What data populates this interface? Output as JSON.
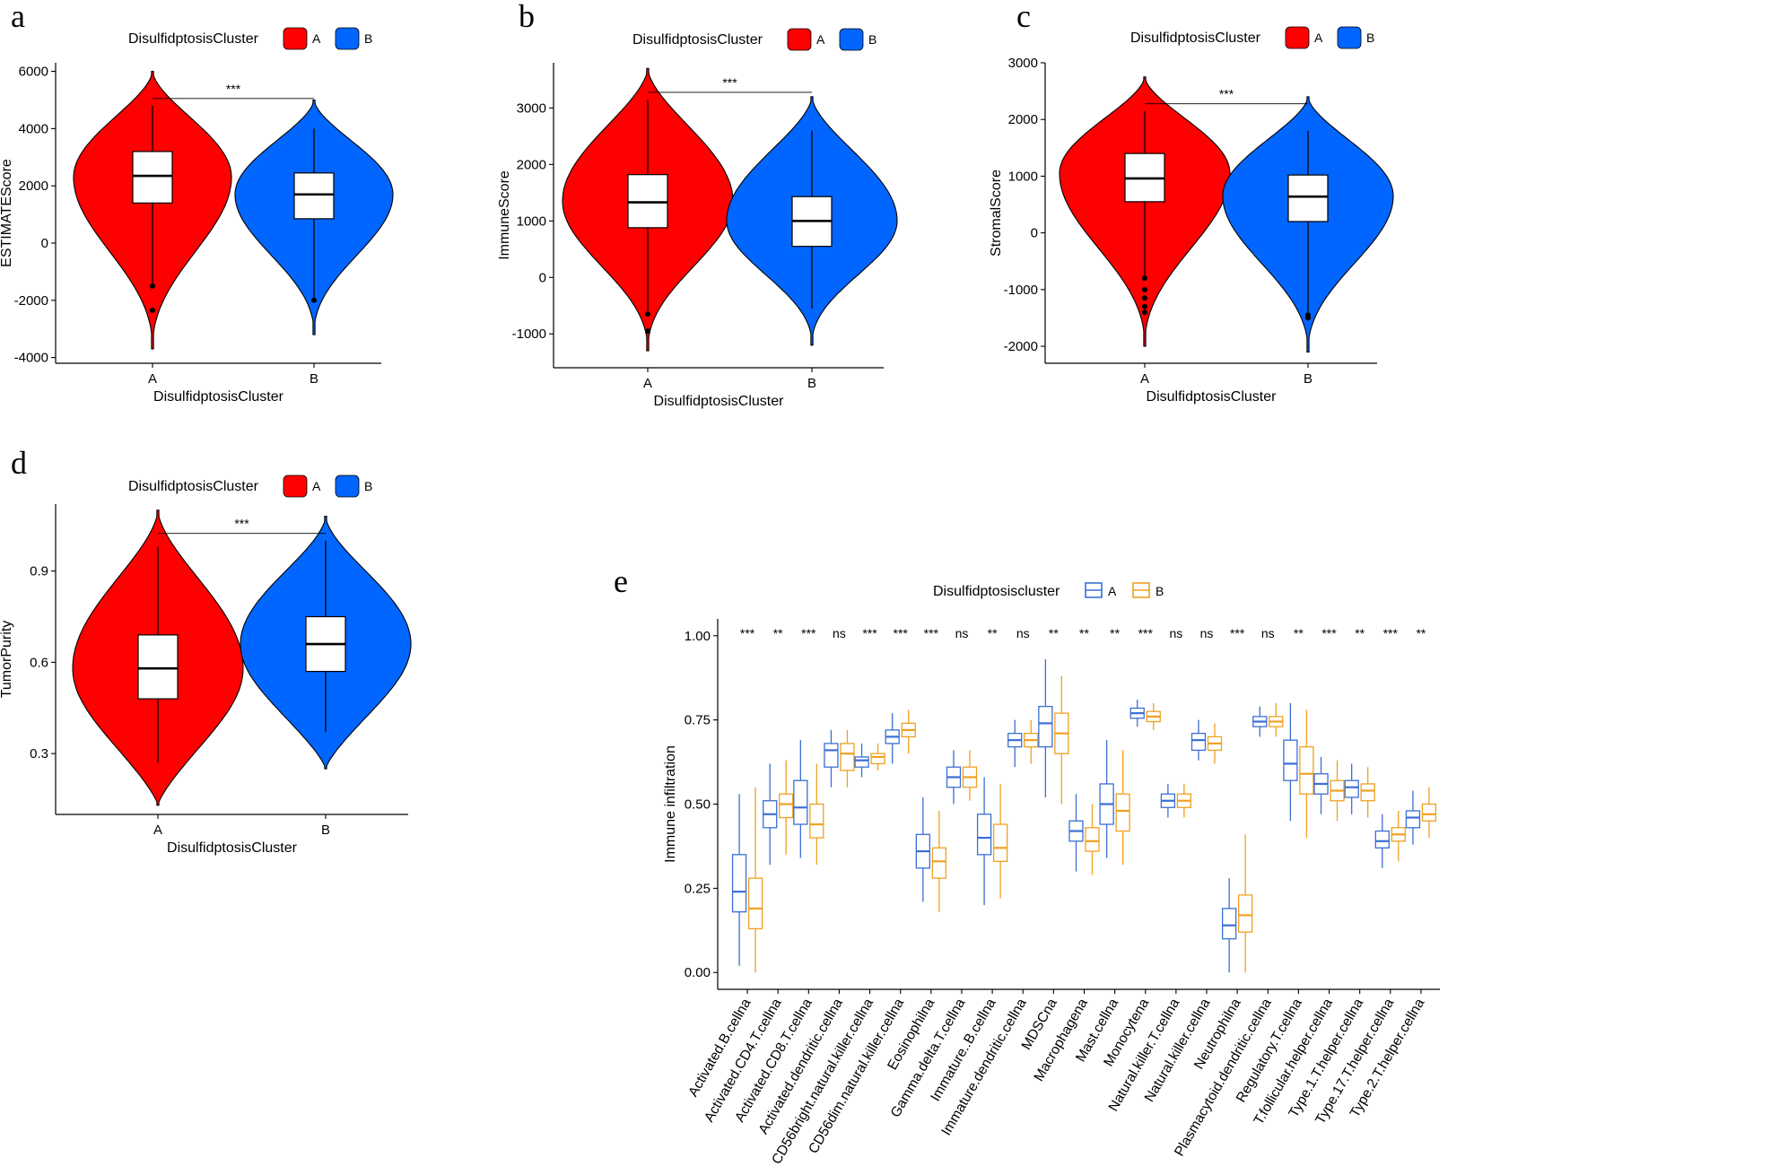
{
  "colors": {
    "cluster_A": "#ff0000",
    "cluster_B": "#0066ff",
    "box_A": "#3a6fd6",
    "box_B": "#f0a020"
  },
  "chart_data": [
    {
      "panel": "a",
      "type": "violin",
      "legend_title": "DisulfidptosisCluster",
      "legend_position": "top",
      "xlabel": "DisulfidptosisCluster",
      "ylabel": "ESTIMATEScore",
      "ylim": [
        -4200,
        6300
      ],
      "yticks": [
        -4000,
        -2000,
        0,
        2000,
        4000,
        6000
      ],
      "significance": "***",
      "groups": [
        {
          "name": "A",
          "min": -3700,
          "max": 6000,
          "q1": 1400,
          "median": 2350,
          "q3": 3200,
          "whisker_low": -1500,
          "whisker_high": 4800,
          "outliers": [
            -1500,
            -2350
          ],
          "density_peak": 2300
        },
        {
          "name": "B",
          "min": -3200,
          "max": 5000,
          "q1": 850,
          "median": 1700,
          "q3": 2450,
          "whisker_low": -2000,
          "whisker_high": 4000,
          "outliers": [
            -2000
          ],
          "density_peak": 1700
        }
      ]
    },
    {
      "panel": "b",
      "type": "violin",
      "legend_title": "DisulfidptosisCluster",
      "legend_position": "top",
      "xlabel": "DisulfidptosisCluster",
      "ylabel": "ImmuneScore",
      "ylim": [
        -1600,
        3800
      ],
      "yticks": [
        -1000,
        0,
        1000,
        2000,
        3000
      ],
      "significance": "***",
      "groups": [
        {
          "name": "A",
          "min": -1300,
          "max": 3700,
          "q1": 880,
          "median": 1330,
          "q3": 1820,
          "whisker_low": -650,
          "whisker_high": 3150,
          "outliers": [
            -650,
            -950
          ],
          "density_peak": 1350
        },
        {
          "name": "B",
          "min": -1200,
          "max": 3200,
          "q1": 550,
          "median": 1000,
          "q3": 1430,
          "whisker_low": -550,
          "whisker_high": 2600,
          "outliers": [],
          "density_peak": 1000
        }
      ]
    },
    {
      "panel": "c",
      "type": "violin",
      "legend_title": "DisulfidptosisCluster",
      "legend_position": "top",
      "xlabel": "DisulfidptosisCluster",
      "ylabel": "StromalScore",
      "ylim": [
        -2300,
        3000
      ],
      "yticks": [
        -2000,
        -1000,
        0,
        1000,
        2000,
        3000
      ],
      "significance": "***",
      "groups": [
        {
          "name": "A",
          "min": -2000,
          "max": 2750,
          "q1": 550,
          "median": 960,
          "q3": 1400,
          "whisker_low": -800,
          "whisker_high": 2150,
          "outliers": [
            -800,
            -1000,
            -1150,
            -1300,
            -1400
          ],
          "density_peak": 1050
        },
        {
          "name": "B",
          "min": -2100,
          "max": 2400,
          "q1": 200,
          "median": 640,
          "q3": 1020,
          "whisker_low": -1400,
          "whisker_high": 1800,
          "outliers": [
            -1450,
            -1500
          ],
          "density_peak": 650
        }
      ]
    },
    {
      "panel": "d",
      "type": "violin",
      "legend_title": "DisulfidptosisCluster",
      "legend_position": "top",
      "xlabel": "DisulfidptosisCluster",
      "ylabel": "TumorPurity",
      "ylim": [
        0.1,
        1.12
      ],
      "yticks": [
        0.3,
        0.6,
        0.9
      ],
      "significance": "***",
      "groups": [
        {
          "name": "A",
          "min": 0.13,
          "max": 1.1,
          "q1": 0.48,
          "median": 0.58,
          "q3": 0.69,
          "whisker_low": 0.27,
          "whisker_high": 0.98,
          "outliers": [],
          "density_peak": 0.58
        },
        {
          "name": "B",
          "min": 0.25,
          "max": 1.08,
          "q1": 0.57,
          "median": 0.66,
          "q3": 0.75,
          "whisker_low": 0.37,
          "whisker_high": 1.0,
          "outliers": [],
          "density_peak": 0.66
        }
      ]
    },
    {
      "panel": "e",
      "type": "box",
      "legend_title": "Disulfidptosiscluster",
      "legend_position": "top",
      "ylabel": "Immune infiltration",
      "ylim": [
        -0.05,
        1.05
      ],
      "yticks": [
        0.0,
        0.25,
        0.5,
        0.75,
        1.0
      ],
      "ytick_labels": [
        "0.00",
        "0.25",
        "0.50",
        "0.75",
        "1.00"
      ],
      "series": [
        {
          "name": "A"
        },
        {
          "name": "B"
        }
      ],
      "categories": [
        {
          "name": "Activated.B.cellna",
          "sig": "***",
          "A": [
            0.02,
            0.18,
            0.24,
            0.35,
            0.53
          ],
          "B": [
            0.0,
            0.13,
            0.19,
            0.28,
            0.55
          ]
        },
        {
          "name": "Activated.CD4.T.cellna",
          "sig": "**",
          "A": [
            0.32,
            0.43,
            0.47,
            0.51,
            0.62
          ],
          "B": [
            0.35,
            0.46,
            0.5,
            0.53,
            0.63
          ]
        },
        {
          "name": "Activated.CD8.T.cellna",
          "sig": "***",
          "A": [
            0.34,
            0.44,
            0.49,
            0.57,
            0.69
          ],
          "B": [
            0.32,
            0.4,
            0.44,
            0.5,
            0.62
          ]
        },
        {
          "name": "Activated.dendritic.cellna",
          "sig": "ns",
          "A": [
            0.55,
            0.61,
            0.66,
            0.68,
            0.72
          ],
          "B": [
            0.55,
            0.6,
            0.65,
            0.68,
            0.72
          ]
        },
        {
          "name": "CD56bright.natural.killer.cellna",
          "sig": "***",
          "A": [
            0.58,
            0.61,
            0.63,
            0.64,
            0.68
          ],
          "B": [
            0.6,
            0.62,
            0.64,
            0.65,
            0.68
          ]
        },
        {
          "name": "CD56dim.natural.killer.cellna",
          "sig": "***",
          "A": [
            0.62,
            0.68,
            0.7,
            0.72,
            0.77
          ],
          "B": [
            0.65,
            0.7,
            0.72,
            0.74,
            0.78
          ]
        },
        {
          "name": "Eosinophilna",
          "sig": "***",
          "A": [
            0.21,
            0.31,
            0.36,
            0.41,
            0.52
          ],
          "B": [
            0.18,
            0.28,
            0.33,
            0.37,
            0.48
          ]
        },
        {
          "name": "Gamma.delta.T.cellna",
          "sig": "ns",
          "A": [
            0.5,
            0.55,
            0.58,
            0.61,
            0.66
          ],
          "B": [
            0.51,
            0.55,
            0.58,
            0.61,
            0.66
          ]
        },
        {
          "name": "Immature..B.cellna",
          "sig": "**",
          "A": [
            0.2,
            0.35,
            0.4,
            0.47,
            0.58
          ],
          "B": [
            0.22,
            0.33,
            0.37,
            0.44,
            0.56
          ]
        },
        {
          "name": "Immature.dendritic.cellna",
          "sig": "ns",
          "A": [
            0.61,
            0.67,
            0.69,
            0.71,
            0.75
          ],
          "B": [
            0.62,
            0.67,
            0.69,
            0.71,
            0.75
          ]
        },
        {
          "name": "MDSCna",
          "sig": "**",
          "A": [
            0.52,
            0.67,
            0.74,
            0.79,
            0.93
          ],
          "B": [
            0.5,
            0.65,
            0.71,
            0.77,
            0.88
          ]
        },
        {
          "name": "Macrophagena",
          "sig": "**",
          "A": [
            0.3,
            0.39,
            0.42,
            0.45,
            0.53
          ],
          "B": [
            0.29,
            0.36,
            0.39,
            0.43,
            0.5
          ]
        },
        {
          "name": "Mast.cellna",
          "sig": "**",
          "A": [
            0.34,
            0.44,
            0.5,
            0.56,
            0.69
          ],
          "B": [
            0.32,
            0.42,
            0.48,
            0.53,
            0.66
          ]
        },
        {
          "name": "Monocytena",
          "sig": "***",
          "A": [
            0.73,
            0.755,
            0.77,
            0.785,
            0.81
          ],
          "B": [
            0.72,
            0.745,
            0.76,
            0.775,
            0.8
          ]
        },
        {
          "name": "Natural.killer.T.cellna",
          "sig": "ns",
          "A": [
            0.46,
            0.49,
            0.51,
            0.53,
            0.56
          ],
          "B": [
            0.46,
            0.49,
            0.51,
            0.53,
            0.56
          ]
        },
        {
          "name": "Natural.killer.cellna",
          "sig": "ns",
          "A": [
            0.63,
            0.66,
            0.69,
            0.71,
            0.75
          ],
          "B": [
            0.62,
            0.66,
            0.68,
            0.7,
            0.74
          ]
        },
        {
          "name": "Neutrophilna",
          "sig": "***",
          "A": [
            0.0,
            0.1,
            0.14,
            0.19,
            0.28
          ],
          "B": [
            0.0,
            0.12,
            0.17,
            0.23,
            0.41
          ]
        },
        {
          "name": "Plasmacytoid.dendritic.cellna",
          "sig": "ns",
          "A": [
            0.7,
            0.73,
            0.745,
            0.76,
            0.79
          ],
          "B": [
            0.7,
            0.73,
            0.745,
            0.76,
            0.8
          ]
        },
        {
          "name": "Regulatory.T.cellna",
          "sig": "**",
          "A": [
            0.45,
            0.57,
            0.62,
            0.69,
            0.8
          ],
          "B": [
            0.4,
            0.53,
            0.59,
            0.67,
            0.78
          ]
        },
        {
          "name": "T.follicular.helper.cellna",
          "sig": "***",
          "A": [
            0.47,
            0.53,
            0.56,
            0.59,
            0.64
          ],
          "B": [
            0.45,
            0.51,
            0.54,
            0.57,
            0.63
          ]
        },
        {
          "name": "Type.1.T.helper.cellna",
          "sig": "**",
          "A": [
            0.47,
            0.52,
            0.55,
            0.57,
            0.62
          ],
          "B": [
            0.46,
            0.51,
            0.54,
            0.56,
            0.61
          ]
        },
        {
          "name": "Type.17.T.helper.cellna",
          "sig": "***",
          "A": [
            0.31,
            0.37,
            0.39,
            0.42,
            0.47
          ],
          "B": [
            0.33,
            0.39,
            0.41,
            0.43,
            0.48
          ]
        },
        {
          "name": "Type.2.T.helper.cellna",
          "sig": "**",
          "A": [
            0.38,
            0.43,
            0.46,
            0.48,
            0.54
          ],
          "B": [
            0.4,
            0.45,
            0.47,
            0.5,
            0.55
          ]
        }
      ]
    }
  ]
}
